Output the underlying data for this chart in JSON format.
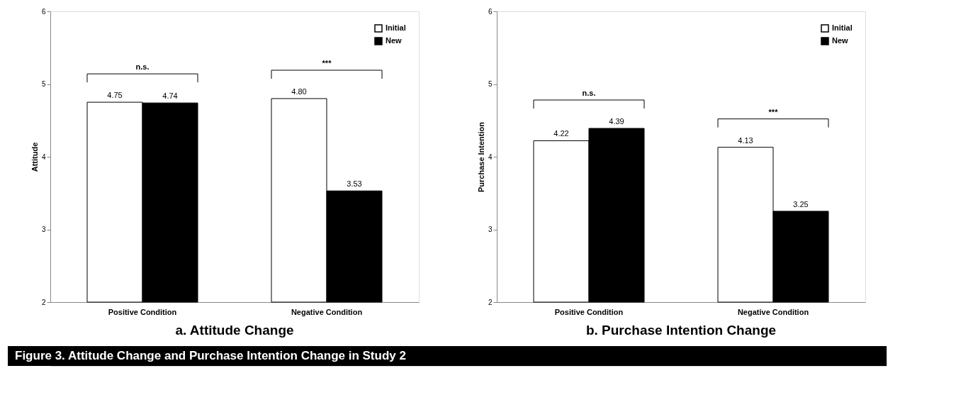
{
  "chart_data": [
    {
      "type": "bar",
      "title": "a. Attitude Change",
      "ylabel": "Attitude",
      "categories": [
        "Positive Condition",
        "Negative Condition"
      ],
      "series": [
        {
          "name": "Initial",
          "color": "#ffffff",
          "values": [
            4.75,
            4.8
          ],
          "value_labels": [
            "4.75",
            "4.80"
          ]
        },
        {
          "name": "New",
          "color": "#000000",
          "values": [
            4.74,
            3.53
          ],
          "value_labels": [
            "4.74",
            "3.53"
          ]
        }
      ],
      "ylim": [
        2,
        6
      ],
      "yticks": [
        2,
        3,
        4,
        5,
        6
      ],
      "grid": false,
      "legend": "top right",
      "annotations": [
        "n.s.",
        "***",
        "Figure 3. Attitude Change and Purchase Intention Change in Study 2"
      ]
    },
    {
      "type": "bar",
      "title": "b. Purchase Intention Change",
      "ylabel": "Purchase Intention",
      "categories": [
        "Positive Condition",
        "Negative Condition"
      ],
      "series": [
        {
          "name": "Initial",
          "color": "#ffffff",
          "values": [
            4.22,
            4.13
          ],
          "value_labels": [
            "4.22",
            "4.13"
          ]
        },
        {
          "name": "New",
          "color": "#000000",
          "values": [
            4.39,
            3.25
          ],
          "value_labels": [
            "4.39",
            "3.25"
          ]
        }
      ],
      "ylim": [
        2,
        6
      ],
      "yticks": [
        2,
        3,
        4,
        5,
        6
      ],
      "grid": false,
      "legend": "top right",
      "annotations": [
        "n.s.",
        "***"
      ]
    }
  ]
}
